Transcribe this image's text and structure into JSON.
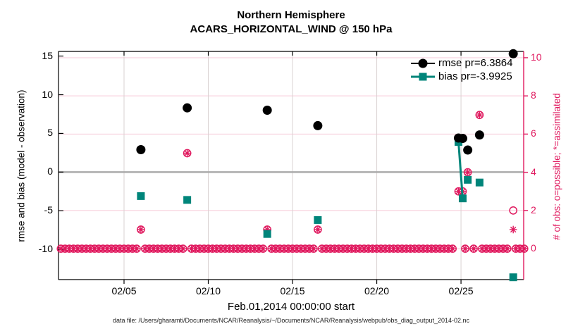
{
  "title": {
    "line1": "Northern Hemisphere",
    "line2": "ACARS_HORIZONTAL_WIND @ 150 hPa"
  },
  "axes": {
    "x": {
      "label": "Feb.01,2014 00:00:00 start",
      "tick_days": [
        5,
        10,
        15,
        20,
        25
      ],
      "tick_labels": [
        "02/05",
        "02/10",
        "02/15",
        "02/20",
        "02/25"
      ],
      "range_days": [
        1.11,
        28.72
      ]
    },
    "y_left": {
      "label": "rmse and bias (model - observation)",
      "ticks": [
        15,
        10,
        5,
        0,
        -5,
        -10
      ],
      "range": [
        -13.9,
        15.6
      ]
    },
    "y_right": {
      "label": "# of obs: o=possible; *=assimilated",
      "ticks": [
        0,
        2,
        4,
        6,
        8,
        10
      ],
      "range": [
        -1.62,
        10.33
      ]
    }
  },
  "legend": [
    {
      "label": "rmse pr=6.3864",
      "marker": "circle",
      "color": "#000000"
    },
    {
      "label": "bias pr=-3.9925",
      "marker": "square",
      "color": "#00857a"
    }
  ],
  "caption": "data file: /Users/gharamti/Documents/NCAR/Reanalysis/~/Documents/NCAR/Reanalysis/webpub/obs_diag_output_2014-02.nc",
  "colors": {
    "rmse": "#000000",
    "bias": "#00857a",
    "magenta": "#e01a5f",
    "grid_vertical": "#d9d2d2",
    "grid_horizontal_pink": "#f6c9d8",
    "zero_line": "#ababab",
    "spine": "#000000"
  },
  "chart_data": {
    "type": "scatter",
    "x_unit": "day of Feb 2014",
    "series_meta": [
      {
        "name": "rmse",
        "axis": "left",
        "marker": "filled-circle",
        "color": "#000000"
      },
      {
        "name": "bias",
        "axis": "left",
        "marker": "filled-square",
        "color": "#00857a"
      },
      {
        "name": "possible obs",
        "axis": "right",
        "marker": "open-circle",
        "color": "#e01a5f"
      },
      {
        "name": "assimilated obs",
        "axis": "right",
        "marker": "asterisk",
        "color": "#e01a5f"
      }
    ],
    "points": [
      {
        "day": 6.0,
        "rmse": 2.9,
        "bias": -3.1,
        "possible": 1,
        "assimilated": 1
      },
      {
        "day": 8.75,
        "rmse": 8.3,
        "bias": -3.6,
        "possible": 5,
        "assimilated": 5
      },
      {
        "day": 13.5,
        "rmse": 8.0,
        "bias": -8.0,
        "possible": 1,
        "assimilated": 1
      },
      {
        "day": 16.5,
        "rmse": 6.0,
        "bias": -6.2,
        "possible": 1,
        "assimilated": 1
      },
      {
        "day": 24.85,
        "rmse": 4.4,
        "bias": 3.9,
        "possible": 3,
        "assimilated": 3
      },
      {
        "day": 25.1,
        "rmse": 4.35,
        "bias": -3.4,
        "possible": 3,
        "assimilated": 3
      },
      {
        "day": 25.4,
        "rmse": 2.85,
        "bias": -1.0,
        "possible": 4,
        "assimilated": 4
      },
      {
        "day": 26.1,
        "rmse": 4.8,
        "bias": -1.35,
        "possible": 7,
        "assimilated": 7
      },
      {
        "day": 28.1,
        "rmse": 15.3,
        "bias": -13.6,
        "possible": 2,
        "assimilated": 1
      }
    ],
    "connected_days": [
      24.85,
      25.1
    ],
    "zero_obs_row": {
      "start_day": 1.25,
      "end_day": 28.75,
      "step": 0.25,
      "value": 0,
      "skip_tolerance": 0.13
    }
  }
}
